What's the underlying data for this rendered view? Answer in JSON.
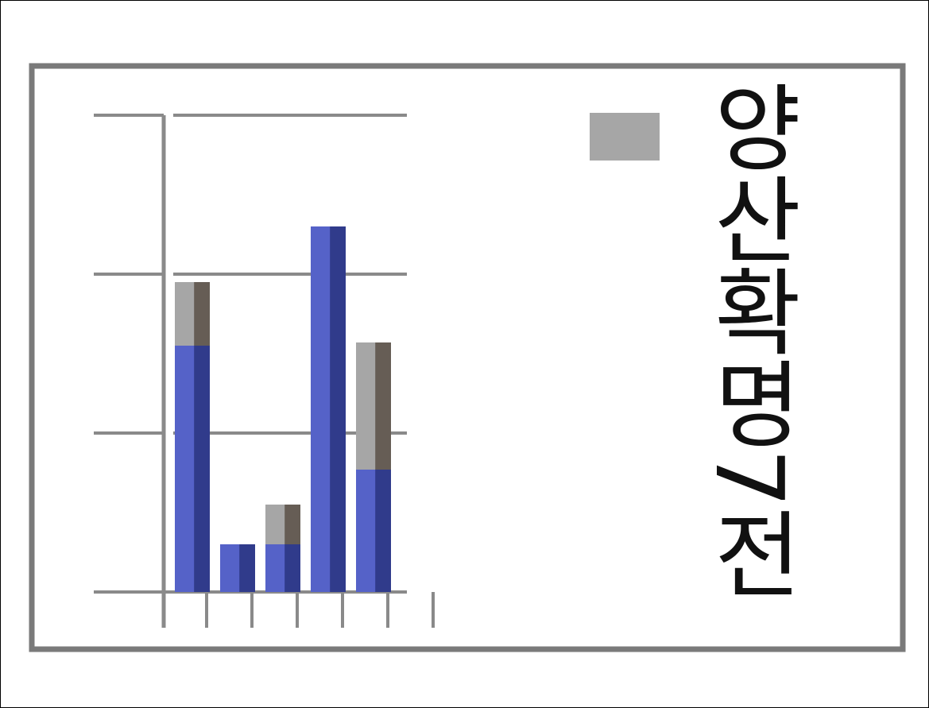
{
  "chart_data": {
    "type": "bar",
    "stacked": true,
    "categories": [
      "",
      "",
      "",
      "",
      "",
      ""
    ],
    "series": [
      {
        "color": "#5562c8",
        "values": [
          155,
          30,
          30,
          230,
          77,
          0
        ]
      },
      {
        "color": "#a6a6a6",
        "values": [
          40,
          0,
          25,
          0,
          80,
          0
        ]
      }
    ],
    "ylim": [
      0,
      300
    ],
    "grid": true,
    "legend_placement": "right",
    "legend": {
      "label": "양산확명7전",
      "swatch_color": "#a6a6a6"
    }
  }
}
